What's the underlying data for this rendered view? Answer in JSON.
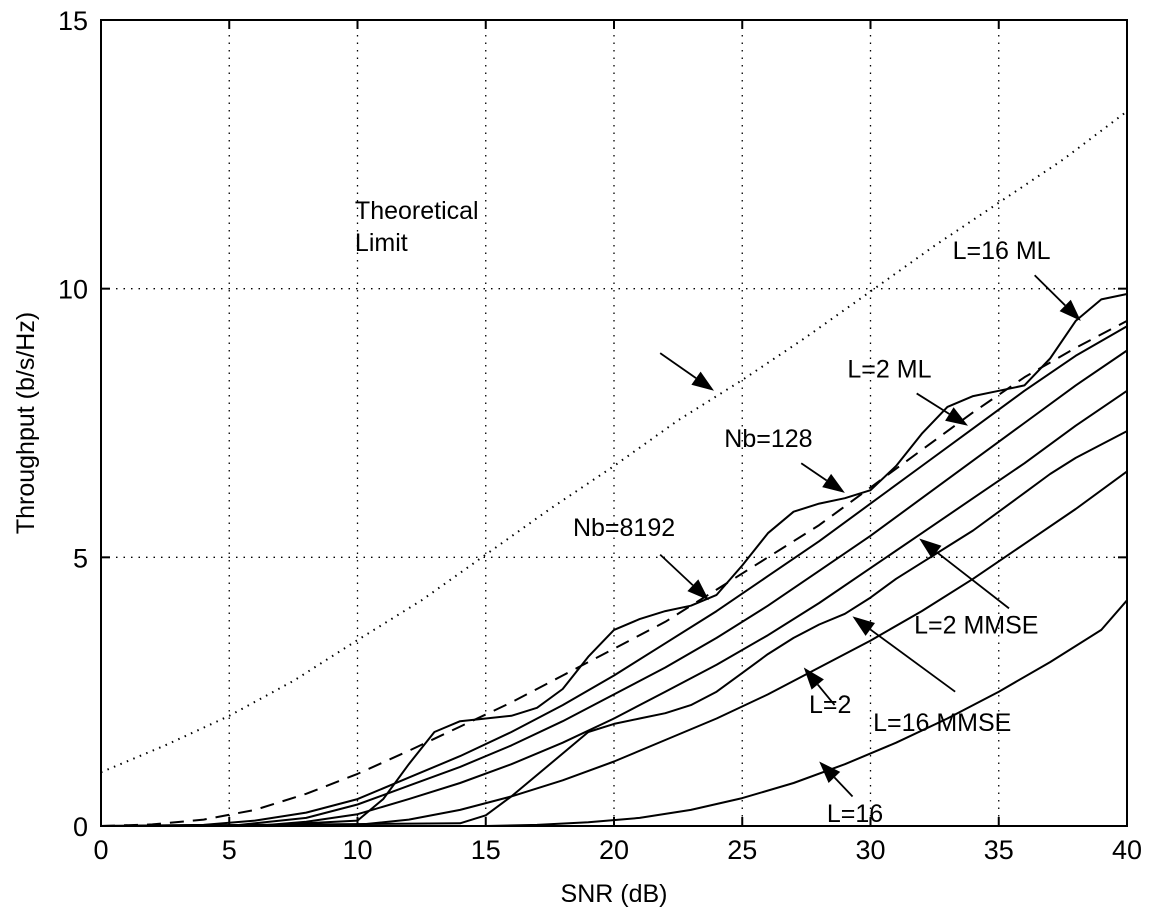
{
  "chart_data": {
    "type": "line",
    "xlabel": "SNR (dB)",
    "ylabel": "Throughput (b/s/Hz)",
    "xlim": [
      0,
      40
    ],
    "ylim": [
      0,
      15
    ],
    "xticks": [
      0,
      5,
      10,
      15,
      20,
      25,
      30,
      35,
      40
    ],
    "yticks": [
      0,
      5,
      10,
      15
    ],
    "grid": true,
    "series": [
      {
        "name": "Theoretical Limit",
        "style": "dotted",
        "x": [
          0,
          2.5,
          5,
          7.5,
          10,
          12.5,
          15,
          17.5,
          20,
          22.5,
          25,
          27.5,
          30,
          32.5,
          35,
          37.5,
          40
        ],
        "y": [
          1.0,
          1.5,
          2.05,
          2.7,
          3.46,
          4.2,
          5.05,
          5.9,
          6.7,
          7.55,
          8.3,
          9.1,
          9.95,
          10.8,
          11.6,
          12.4,
          13.3
        ]
      },
      {
        "name": "Nb=128",
        "style": "dashed",
        "x": [
          0,
          2,
          4,
          6,
          8,
          10,
          12,
          14,
          16,
          18,
          20,
          22,
          24,
          26,
          28,
          30,
          32,
          34,
          36,
          38,
          40
        ],
        "y": [
          0.0,
          0.03,
          0.12,
          0.3,
          0.6,
          0.97,
          1.4,
          1.85,
          2.3,
          2.8,
          3.3,
          3.8,
          4.4,
          5.0,
          5.6,
          6.3,
          7.0,
          7.7,
          8.35,
          8.9,
          9.4
        ]
      },
      {
        "name": "L=16 ML",
        "style": "solid",
        "x": [
          0,
          6,
          8,
          10,
          11,
          12,
          13,
          14,
          15,
          16,
          17,
          18,
          19,
          20,
          21,
          22,
          23,
          24,
          25,
          26,
          27,
          28,
          29,
          30,
          31,
          32,
          33,
          34,
          35,
          36,
          37,
          38,
          39,
          40
        ],
        "y": [
          0.0,
          0.0,
          0.05,
          0.1,
          0.5,
          1.15,
          1.75,
          1.95,
          2.0,
          2.05,
          2.2,
          2.55,
          3.15,
          3.65,
          3.85,
          4.0,
          4.1,
          4.3,
          4.85,
          5.45,
          5.85,
          6.0,
          6.1,
          6.25,
          6.7,
          7.3,
          7.8,
          8.0,
          8.1,
          8.2,
          8.7,
          9.4,
          9.8,
          9.9
        ]
      },
      {
        "name": "L=2 ML",
        "style": "solid",
        "x": [
          0,
          4,
          6,
          8,
          10,
          12,
          14,
          16,
          18,
          20,
          22,
          24,
          26,
          28,
          30,
          32,
          34,
          36,
          38,
          40
        ],
        "y": [
          0.0,
          0.02,
          0.1,
          0.25,
          0.5,
          0.9,
          1.3,
          1.75,
          2.25,
          2.8,
          3.4,
          4.0,
          4.65,
          5.3,
          6.0,
          6.7,
          7.4,
          8.1,
          8.75,
          9.3
        ]
      },
      {
        "name": "Nb=8192",
        "style": "solid",
        "x": [
          0,
          5,
          8,
          10,
          12,
          14,
          16,
          18,
          20,
          22,
          24,
          26,
          28,
          30,
          32,
          34,
          36,
          38,
          40
        ],
        "y": [
          0.0,
          0.0,
          0.15,
          0.4,
          0.75,
          1.1,
          1.5,
          1.95,
          2.45,
          2.95,
          3.5,
          4.1,
          4.75,
          5.4,
          6.1,
          6.8,
          7.5,
          8.2,
          8.85
        ]
      },
      {
        "name": "L=2 MMSE",
        "style": "solid",
        "x": [
          0,
          6,
          8,
          10,
          12,
          14,
          16,
          18,
          20,
          22,
          24,
          26,
          28,
          30,
          32,
          34,
          36,
          38,
          40
        ],
        "y": [
          0.0,
          0.0,
          0.08,
          0.22,
          0.5,
          0.8,
          1.15,
          1.55,
          2.0,
          2.5,
          3.0,
          3.55,
          4.15,
          4.8,
          5.45,
          6.1,
          6.75,
          7.45,
          8.1
        ]
      },
      {
        "name": "L=16 MMSE",
        "style": "solid",
        "x": [
          0,
          14,
          15,
          16,
          17,
          18,
          19,
          20,
          21,
          22,
          23,
          24,
          25,
          26,
          27,
          28,
          29,
          30,
          31,
          32,
          33,
          34,
          35,
          36,
          37,
          38,
          39,
          40
        ],
        "y": [
          0.0,
          0.05,
          0.2,
          0.55,
          0.95,
          1.35,
          1.75,
          1.9,
          2.0,
          2.1,
          2.25,
          2.5,
          2.85,
          3.2,
          3.5,
          3.75,
          3.95,
          4.25,
          4.6,
          4.9,
          5.2,
          5.5,
          5.85,
          6.2,
          6.55,
          6.85,
          7.1,
          7.35
        ]
      },
      {
        "name": "L=2",
        "style": "solid",
        "x": [
          0,
          9,
          10,
          12,
          14,
          16,
          18,
          20,
          22,
          24,
          26,
          28,
          30,
          32,
          34,
          36,
          38,
          40
        ],
        "y": [
          0.0,
          0.0,
          0.02,
          0.12,
          0.3,
          0.55,
          0.85,
          1.2,
          1.6,
          2.0,
          2.45,
          2.95,
          3.45,
          4.0,
          4.6,
          5.25,
          5.9,
          6.6
        ]
      },
      {
        "name": "L=16",
        "style": "solid",
        "x": [
          0,
          15,
          17,
          19,
          21,
          23,
          25,
          27,
          29,
          31,
          33,
          35,
          37,
          39,
          40
        ],
        "y": [
          0.0,
          0.0,
          0.02,
          0.07,
          0.15,
          0.3,
          0.52,
          0.8,
          1.15,
          1.55,
          2.0,
          2.5,
          3.05,
          3.65,
          4.2
        ]
      }
    ],
    "annotations": [
      {
        "text": [
          "Theoretical",
          "Limit"
        ],
        "anchor": "start",
        "label_at": [
          9.9,
          11.3
        ],
        "tail": [
          21.8,
          8.8
        ],
        "tip": [
          23.9,
          8.1
        ]
      },
      {
        "text": [
          "L=16 ML"
        ],
        "anchor": "start",
        "label_at": [
          33.2,
          10.55
        ],
        "tail": [
          36.4,
          10.25
        ],
        "tip": [
          38.2,
          9.4
        ]
      },
      {
        "text": [
          "L=2 ML"
        ],
        "anchor": "start",
        "label_at": [
          29.1,
          8.35
        ],
        "tail": [
          31.8,
          8.05
        ],
        "tip": [
          33.8,
          7.45
        ]
      },
      {
        "text": [
          "Nb=128"
        ],
        "anchor": "start",
        "label_at": [
          24.3,
          7.05
        ],
        "tail": [
          27.3,
          6.75
        ],
        "tip": [
          29.0,
          6.2
        ]
      },
      {
        "text": [
          "Nb=8192"
        ],
        "anchor": "start",
        "label_at": [
          18.4,
          5.4
        ],
        "tail": [
          21.8,
          5.05
        ],
        "tip": [
          23.7,
          4.2
        ]
      },
      {
        "text": [
          "L=2 MMSE"
        ],
        "anchor": "start",
        "label_at": [
          31.7,
          3.58
        ],
        "tail": [
          35.4,
          4.05
        ],
        "tip": [
          31.9,
          5.35
        ]
      },
      {
        "text": [
          "L=16 MMSE"
        ],
        "anchor": "start",
        "label_at": [
          30.1,
          1.77
        ],
        "tail": [
          33.3,
          2.5
        ],
        "tip": [
          29.3,
          3.9
        ]
      },
      {
        "text": [
          "L=2"
        ],
        "anchor": "start",
        "label_at": [
          27.6,
          2.1
        ],
        "tail": [
          28.6,
          2.25
        ],
        "tip": [
          27.4,
          2.95
        ]
      },
      {
        "text": [
          "L=16"
        ],
        "anchor": "start",
        "label_at": [
          28.3,
          0.07
        ],
        "tail": [
          29.3,
          0.55
        ],
        "tip": [
          28.0,
          1.2
        ]
      }
    ]
  }
}
